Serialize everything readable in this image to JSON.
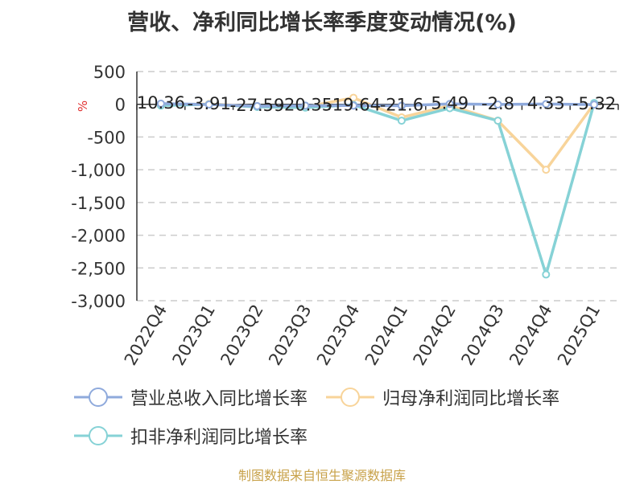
{
  "title": "营收、净利同比增长率季度变动情况(%)",
  "source": "制图数据来自恒生聚源数据库",
  "colors": {
    "revenue": "#8faadc",
    "net_profit": "#f8d49a",
    "deducted_net_profit": "#86d2d6",
    "grid": "#cccccc",
    "axis": "#333333",
    "unit": "#e03030"
  },
  "chart_data": {
    "type": "line",
    "title": "营收、净利同比增长率季度变动情况(%)",
    "ylabel": "%",
    "ylim": [
      -3000,
      500
    ],
    "yticks": [
      500,
      0,
      -500,
      -1000,
      -1500,
      -2000,
      -2500,
      -3000
    ],
    "ytick_labels": [
      "500",
      "0",
      "-500",
      "-1,000",
      "-1,500",
      "-2,000",
      "-2,500",
      "-3,000"
    ],
    "categories": [
      "2022Q4",
      "2023Q1",
      "2023Q2",
      "2023Q3",
      "2023Q4",
      "2024Q1",
      "2024Q2",
      "2024Q3",
      "2024Q4",
      "2025Q1"
    ],
    "grid": true,
    "legend_position": "bottom",
    "series": [
      {
        "name": "营业总收入同比增长率",
        "values": [
          10.36,
          -3.91,
          -27.59,
          -20.35,
          -19.64,
          -21.6,
          5.49,
          -2.8,
          4.33,
          -5.32
        ],
        "labels": [
          "10.36",
          "-3.91",
          "-27.59",
          "-20.35",
          "-19.64",
          "-21.6",
          "5.49",
          "-2.8",
          "4.33",
          "-5.32"
        ]
      },
      {
        "name": "归母净利润同比增长率",
        "values": [
          -10,
          5,
          -30,
          -40,
          100,
          -200,
          -20,
          -250,
          -1000,
          10
        ]
      },
      {
        "name": "扣非净利润同比增长率",
        "values": [
          -20,
          0,
          -40,
          -50,
          -10,
          -250,
          -60,
          -250,
          -2600,
          20
        ]
      }
    ]
  }
}
